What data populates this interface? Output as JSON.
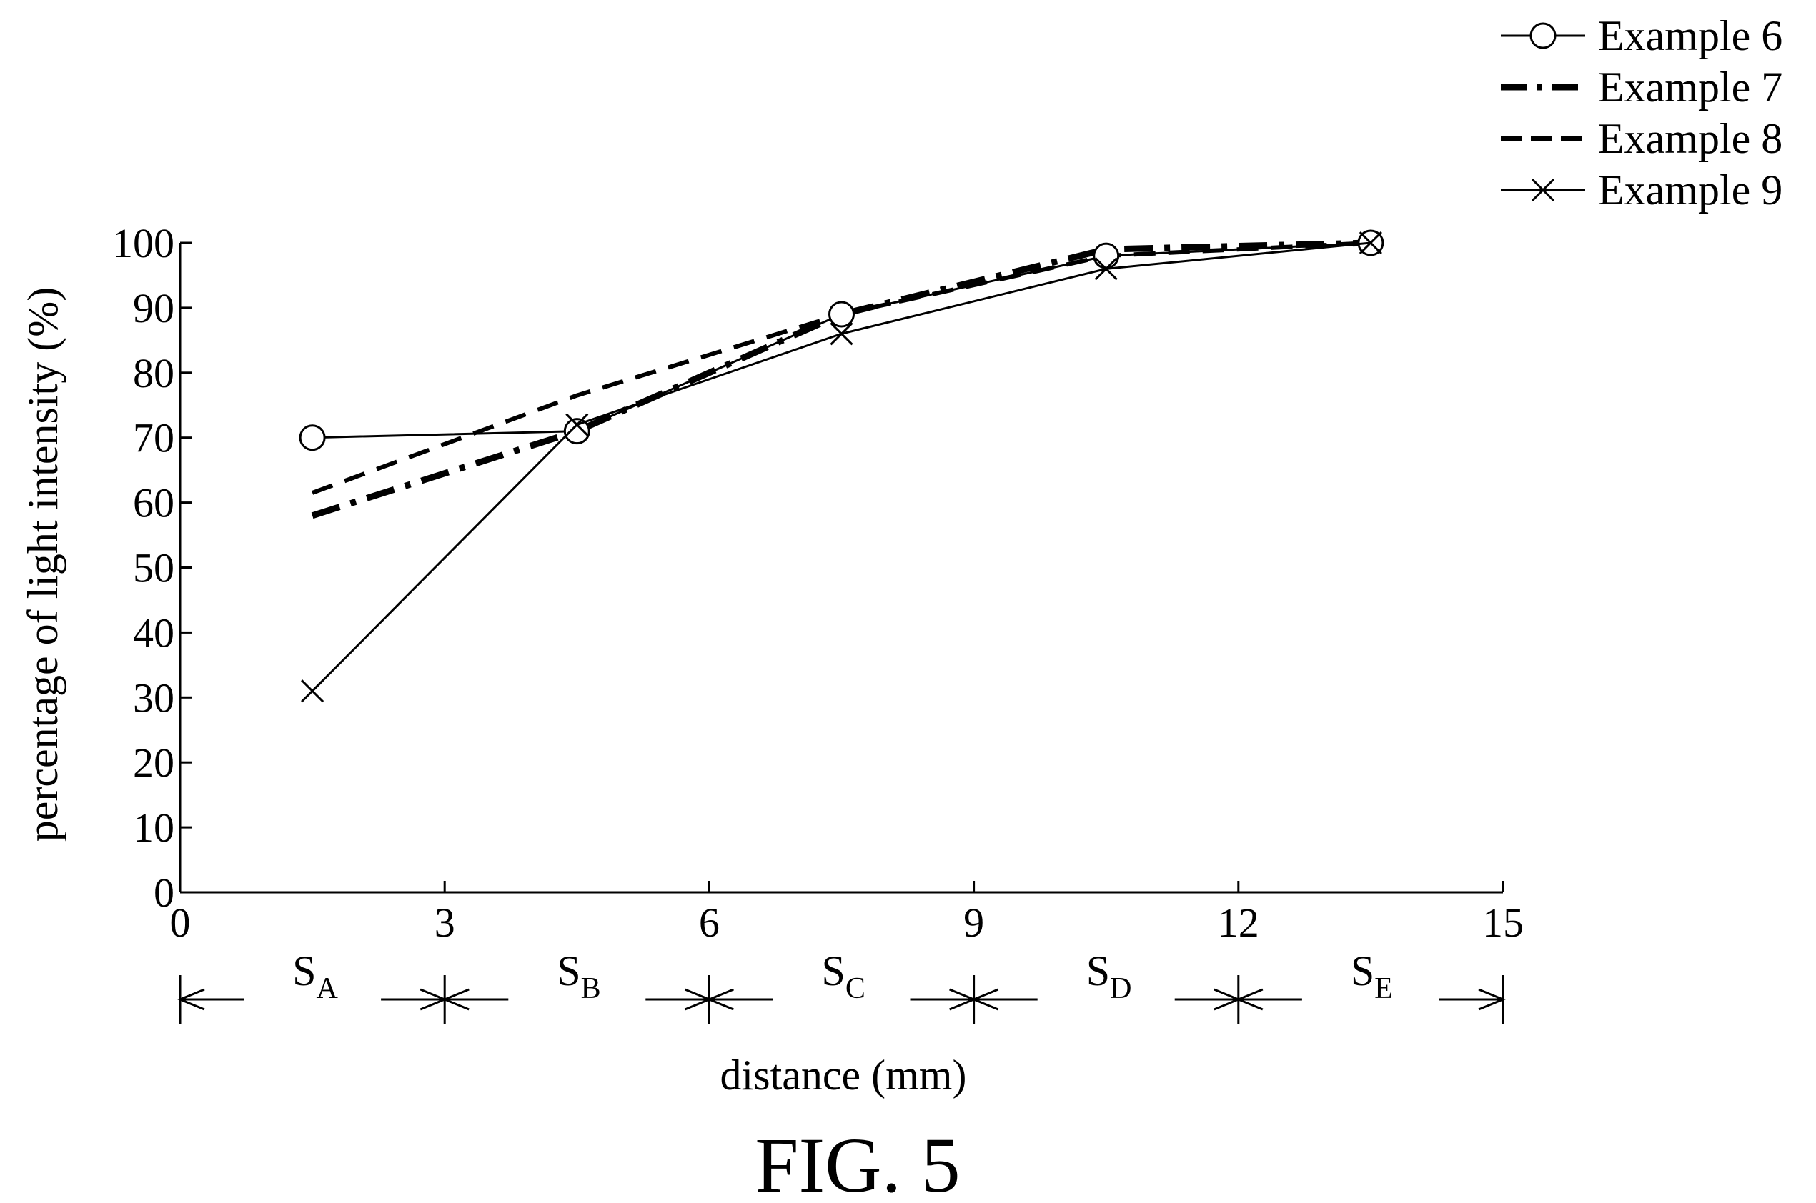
{
  "chart_data": {
    "type": "line",
    "xlabel": "distance (mm)",
    "ylabel": "percentage of light intensity (%)",
    "xlim": [
      0,
      15
    ],
    "ylim": [
      0,
      100
    ],
    "x_ticks": [
      "0",
      "3",
      "6",
      "9",
      "12",
      "15"
    ],
    "y_ticks": [
      "0",
      "10",
      "20",
      "30",
      "40",
      "50",
      "60",
      "70",
      "80",
      "90",
      "100"
    ],
    "grid": false,
    "legend_position": "top-right",
    "x": [
      1.5,
      4.5,
      7.5,
      10.5,
      13.5
    ],
    "series": [
      {
        "name": "Example 6",
        "values": [
          70,
          71,
          89,
          98,
          100
        ],
        "line": "solid-thin",
        "marker": "circle"
      },
      {
        "name": "Example 7",
        "values": [
          58,
          71,
          89,
          99,
          100
        ],
        "line": "dash-dot",
        "marker": "none"
      },
      {
        "name": "Example 8",
        "values": [
          61.5,
          76.5,
          89,
          98,
          100
        ],
        "line": "dashed",
        "marker": "none"
      },
      {
        "name": "Example 9",
        "values": [
          31,
          72,
          86,
          96,
          100
        ],
        "line": "solid-thin",
        "marker": "x"
      }
    ],
    "segments": [
      {
        "label": "S",
        "sub": "A",
        "from": 0,
        "to": 3
      },
      {
        "label": "S",
        "sub": "B",
        "from": 3,
        "to": 6
      },
      {
        "label": "S",
        "sub": "C",
        "from": 6,
        "to": 9
      },
      {
        "label": "S",
        "sub": "D",
        "from": 9,
        "to": 12
      },
      {
        "label": "S",
        "sub": "E",
        "from": 12,
        "to": 15
      }
    ]
  },
  "caption": "FIG.  5",
  "colors": {
    "ink": "#000000",
    "background": "#ffffff"
  }
}
